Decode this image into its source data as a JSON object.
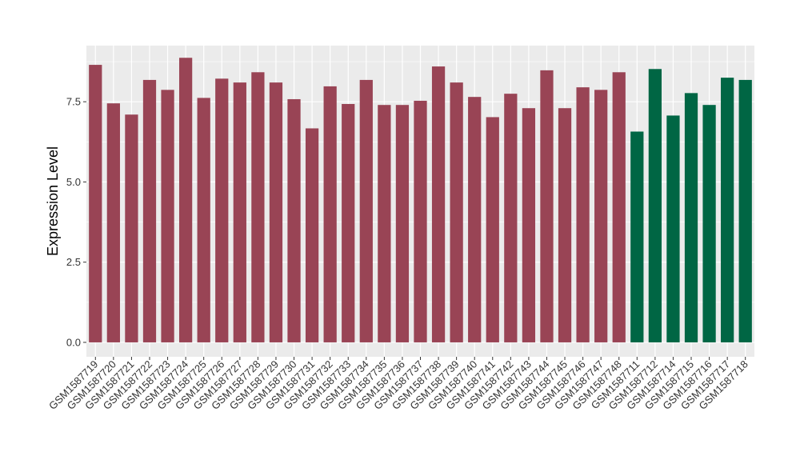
{
  "chart_data": {
    "type": "bar",
    "title": "",
    "xlabel": "",
    "ylabel": "Expression Level",
    "ylim": [
      0,
      9
    ],
    "yticks": [
      0.0,
      2.5,
      5.0,
      7.5
    ],
    "ytick_labels": [
      "0.0",
      "2.5",
      "5.0",
      "7.5"
    ],
    "grid": true,
    "legend": "none",
    "categories": [
      "GSM1587719",
      "GSM1587720",
      "GSM1587721",
      "GSM1587722",
      "GSM1587723",
      "GSM1587724",
      "GSM1587725",
      "GSM1587726",
      "GSM1587727",
      "GSM1587728",
      "GSM1587729",
      "GSM1587730",
      "GSM1587731",
      "GSM1587732",
      "GSM1587733",
      "GSM1587734",
      "GSM1587735",
      "GSM1587736",
      "GSM1587737",
      "GSM1587738",
      "GSM1587739",
      "GSM1587740",
      "GSM1587741",
      "GSM1587742",
      "GSM1587743",
      "GSM1587744",
      "GSM1587745",
      "GSM1587746",
      "GSM1587747",
      "GSM1587748",
      "GSM1587711",
      "GSM1587712",
      "GSM1587714",
      "GSM1587715",
      "GSM1587716",
      "GSM1587717",
      "GSM1587718"
    ],
    "values": [
      8.65,
      7.45,
      7.1,
      8.18,
      7.87,
      8.87,
      7.62,
      8.22,
      8.1,
      8.42,
      8.1,
      7.58,
      6.67,
      7.98,
      7.43,
      8.18,
      7.4,
      7.4,
      7.53,
      8.6,
      8.1,
      7.65,
      7.02,
      7.75,
      7.3,
      8.48,
      7.3,
      7.95,
      7.87,
      8.42,
      6.57,
      8.52,
      7.07,
      7.77,
      7.4,
      8.25,
      8.18
    ],
    "groups": [
      0,
      0,
      0,
      0,
      0,
      0,
      0,
      0,
      0,
      0,
      0,
      0,
      0,
      0,
      0,
      0,
      0,
      0,
      0,
      0,
      0,
      0,
      0,
      0,
      0,
      0,
      0,
      0,
      0,
      0,
      1,
      1,
      1,
      1,
      1,
      1,
      1
    ],
    "group_colors": [
      "#994455",
      "#006644"
    ],
    "panel_background": "#ebebeb",
    "grid_color": "#ffffff"
  }
}
